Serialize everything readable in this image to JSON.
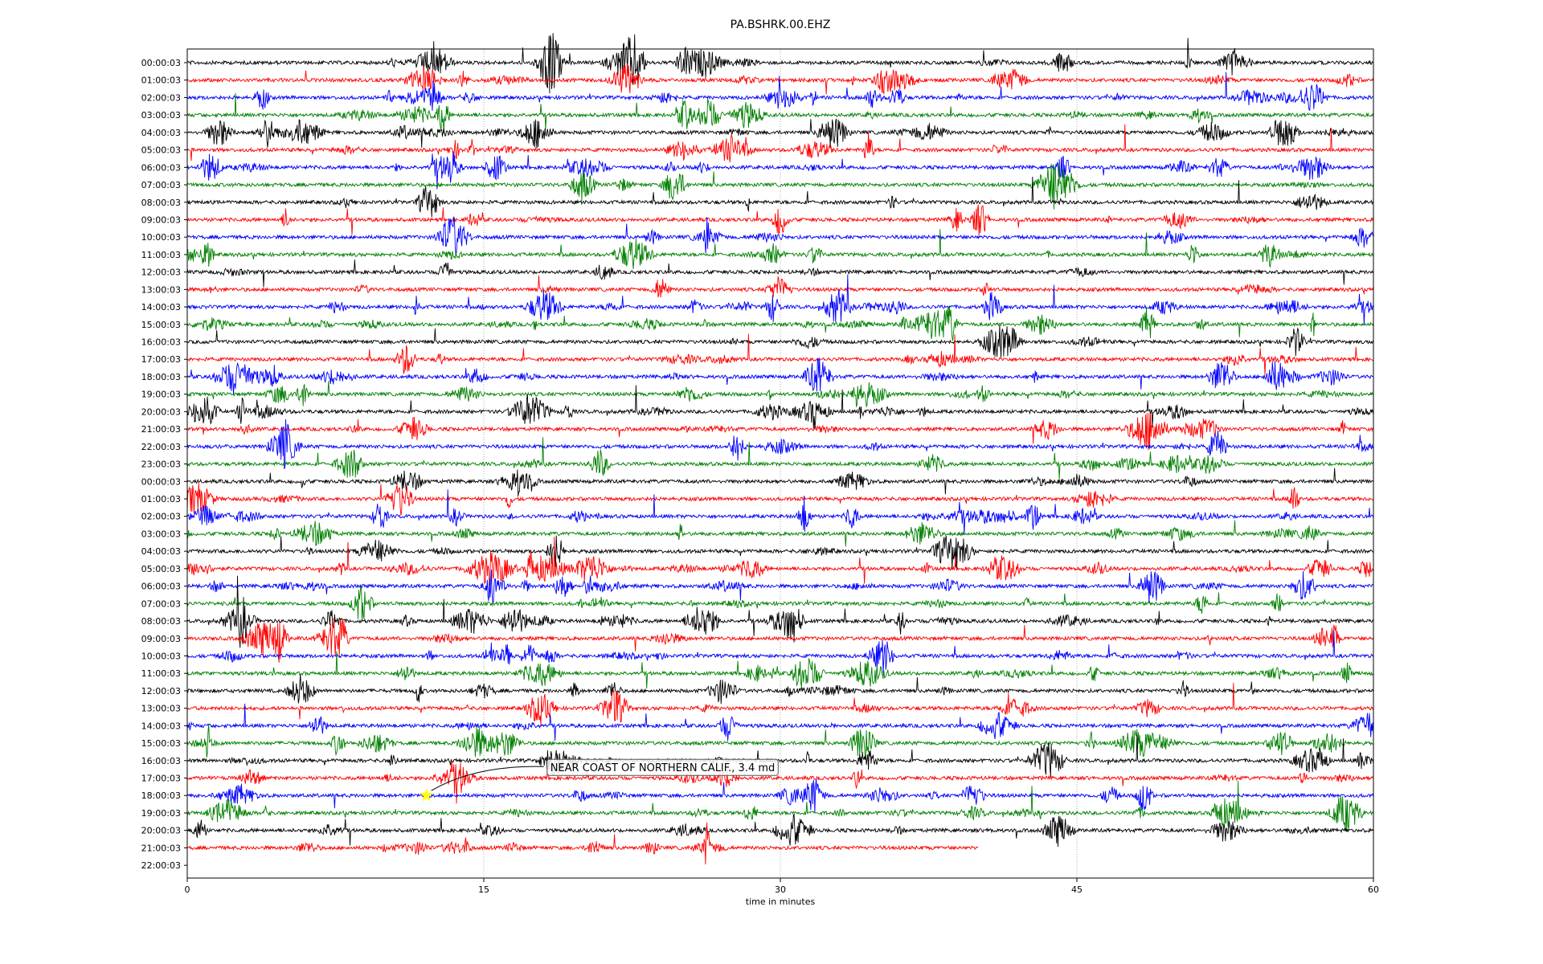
{
  "chart_data": {
    "type": "line",
    "title": "PA.BSHRK.00.EHZ",
    "xlabel": "time in minutes",
    "ylabel": "",
    "xlim": [
      0,
      60
    ],
    "x_ticks": [
      "0",
      "15",
      "30",
      "45",
      "60"
    ],
    "x_tick_values": [
      0,
      15,
      30,
      45,
      60
    ],
    "grid": "vertical dotted at x ticks",
    "row_labels": [
      "00:00:03",
      "01:00:03",
      "02:00:03",
      "03:00:03",
      "04:00:03",
      "05:00:03",
      "06:00:03",
      "07:00:03",
      "08:00:03",
      "09:00:03",
      "10:00:03",
      "11:00:03",
      "12:00:03",
      "13:00:03",
      "14:00:03",
      "15:00:03",
      "16:00:03",
      "17:00:03",
      "18:00:03",
      "19:00:03",
      "20:00:03",
      "21:00:03",
      "22:00:03",
      "23:00:03",
      "00:00:03",
      "01:00:03",
      "02:00:03",
      "03:00:03",
      "04:00:03",
      "05:00:03",
      "06:00:03",
      "07:00:03",
      "08:00:03",
      "09:00:03",
      "10:00:03",
      "11:00:03",
      "12:00:03",
      "13:00:03",
      "14:00:03",
      "15:00:03",
      "16:00:03",
      "17:00:03",
      "18:00:03",
      "19:00:03",
      "20:00:03",
      "21:00:03",
      "22:00:03"
    ],
    "series_colors": [
      "#000000",
      "#ff0000",
      "#0000ff",
      "#008000"
    ],
    "last_row_end_minutes": 40,
    "event": {
      "label": "NEAR COAST OF NORTHERN CALIF., 3.4 md",
      "row_index": 42,
      "minute": 12.1,
      "marker": "star",
      "marker_color": "#ffff00"
    }
  }
}
